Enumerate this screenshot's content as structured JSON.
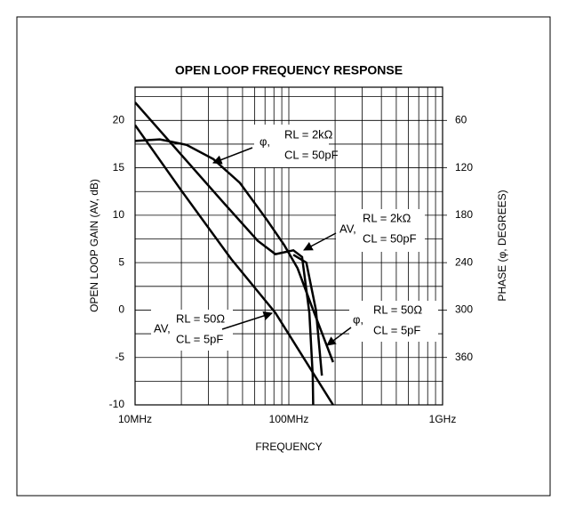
{
  "chart_data": {
    "type": "line",
    "title": "OPEN LOOP FREQUENCY RESPONSE",
    "x_label": "FREQUENCY",
    "y_label": "OPEN LOOP GAIN (AV, dB)",
    "y2_label": "PHASE (φ, DEGREES)",
    "xlog": true,
    "grid": true,
    "xlim": [
      10,
      1000
    ],
    "xticks": [
      {
        "value": 10,
        "label": "10MHz"
      },
      {
        "value": 100,
        "label": "100MHz"
      },
      {
        "value": 1000,
        "label": "1GHz"
      }
    ],
    "xminorticks": [
      20,
      30,
      40,
      50,
      60,
      70,
      80,
      90,
      200,
      300,
      400,
      500,
      600,
      700,
      800,
      900
    ],
    "ylim": [
      -10,
      23.5
    ],
    "yticks": [
      -10,
      -5,
      0,
      5,
      10,
      15,
      20
    ],
    "yminorticks": [
      -7.5,
      -2.5,
      2.5,
      7.5,
      12.5,
      17.5,
      22.5
    ],
    "y2lim": [
      420,
      18
    ],
    "y2ticks": [
      60,
      120,
      180,
      240,
      300,
      360
    ],
    "series": [
      {
        "name": "AV, RL = 2kΩ, CL = 50pF",
        "color": "#000000",
        "x": [
          10,
          36.8,
          62.8,
          81.8,
          107,
          122,
          136,
          143,
          144
        ],
        "values": [
          21.9,
          11.5,
          7.3,
          5.9,
          6.3,
          5.6,
          -0.3,
          -6.9,
          -10
        ]
      },
      {
        "name": "AV, RL = 50Ω, CL = 5pF",
        "color": "#000000",
        "x": [
          10,
          20,
          42.1,
          81.8,
          194
        ],
        "values": [
          19.5,
          12.6,
          5.4,
          -0.3,
          -10
        ]
      },
      {
        "name": "φ, RL = 2kΩ, CL = 50pF",
        "color": "#000000",
        "axis": "y2",
        "x": [
          10,
          14.5,
          21.6,
          32.3,
          48,
          71.5,
          93.4,
          114,
          139,
          194
        ],
        "values": [
          86,
          84,
          91,
          109,
          139,
          185,
          218,
          247,
          292,
          366
        ]
      },
      {
        "name": "φ, RL = 50Ω, CL = 5pF",
        "color": "#000000",
        "axis": "y2",
        "x": [
          107,
          130,
          150,
          164
        ],
        "values": [
          230,
          240,
          300,
          383
        ]
      }
    ],
    "annotations": [
      {
        "symbol": "φ,",
        "line1": "RL = 2kΩ",
        "line2": "CL = 50pF"
      },
      {
        "symbol": "AV,",
        "line1": "RL = 2kΩ",
        "line2": "CL = 50pF"
      },
      {
        "symbol": "AV,",
        "line1": "RL = 50Ω",
        "line2": "CL = 5pF"
      },
      {
        "symbol": "φ,",
        "line1": "RL = 50Ω",
        "line2": "CL = 5pF"
      }
    ]
  }
}
